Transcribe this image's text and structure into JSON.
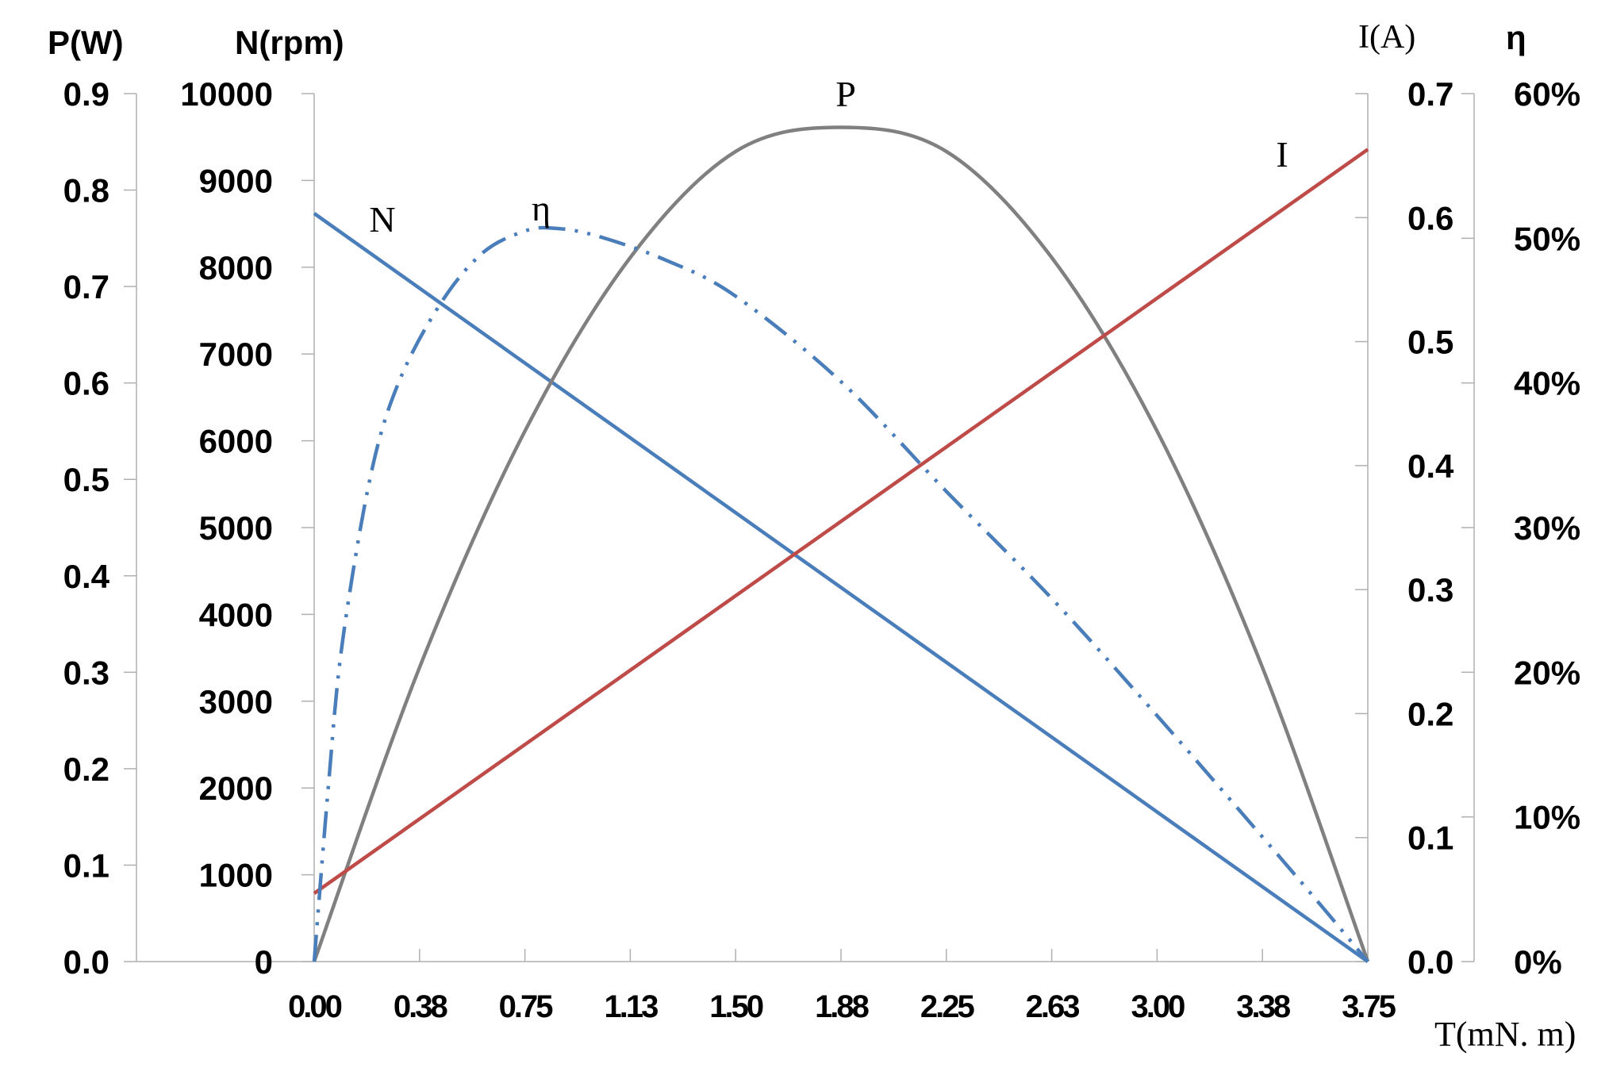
{
  "chart_data": {
    "type": "line",
    "x": {
      "label": "T(mN. m)",
      "ticks": [
        "0.00",
        "0.38",
        "0.75",
        "1.13",
        "1.50",
        "1.88",
        "2.25",
        "2.63",
        "3.00",
        "3.38",
        "3.75"
      ],
      "range": [
        0,
        3.75
      ]
    },
    "axes": {
      "power": {
        "title": "P(W)",
        "ticks": [
          "0.0",
          "0.1",
          "0.2",
          "0.3",
          "0.4",
          "0.5",
          "0.6",
          "0.7",
          "0.8",
          "0.9"
        ],
        "range": [
          0,
          0.9
        ]
      },
      "speed": {
        "title": "N(rpm)",
        "ticks": [
          "0",
          "1000",
          "2000",
          "3000",
          "4000",
          "5000",
          "6000",
          "7000",
          "8000",
          "9000",
          "10000"
        ],
        "range": [
          0,
          10000
        ]
      },
      "current": {
        "title": "I(A)",
        "ticks": [
          "0.0",
          "0.1",
          "0.2",
          "0.3",
          "0.4",
          "0.5",
          "0.6",
          "0.7"
        ],
        "range": [
          0,
          0.7
        ]
      },
      "efficiency": {
        "title": "η",
        "ticks": [
          "0%",
          "10%",
          "20%",
          "30%",
          "40%",
          "50%",
          "60%"
        ],
        "range": [
          0,
          0.6
        ]
      }
    },
    "series": [
      {
        "name": "N",
        "axis": "speed",
        "color": "#4a7ebb",
        "style": "solid",
        "x": [
          0,
          3.75
        ],
        "y": [
          8620,
          0
        ]
      },
      {
        "name": "P",
        "axis": "power",
        "color": "#808080",
        "style": "solid",
        "x": [
          0,
          0.375,
          0.75,
          1.125,
          1.5,
          1.875,
          2.25,
          2.625,
          3.0,
          3.375,
          3.75
        ],
        "y": [
          0,
          0.305,
          0.55,
          0.73,
          0.84,
          0.865,
          0.84,
          0.73,
          0.55,
          0.305,
          0
        ]
      },
      {
        "name": "I",
        "axis": "current",
        "color": "#be4b48",
        "style": "solid",
        "x": [
          0,
          3.75
        ],
        "y": [
          0.055,
          0.655
        ]
      },
      {
        "name": "η",
        "axis": "efficiency",
        "color": "#4a7ebb",
        "style": "dash-dot-dot",
        "x": [
          0,
          0.05,
          0.1,
          0.2,
          0.3,
          0.45,
          0.6,
          0.75,
          0.85,
          1.0,
          1.25,
          1.5,
          1.88,
          2.25,
          2.63,
          3.0,
          3.38,
          3.6,
          3.75
        ],
        "y": [
          0,
          0.12,
          0.22,
          0.335,
          0.4,
          0.455,
          0.49,
          0.505,
          0.507,
          0.502,
          0.485,
          0.46,
          0.4,
          0.325,
          0.25,
          0.17,
          0.085,
          0.035,
          0
        ]
      }
    ],
    "grid": false,
    "legend": "none (curves labelled inline)"
  }
}
